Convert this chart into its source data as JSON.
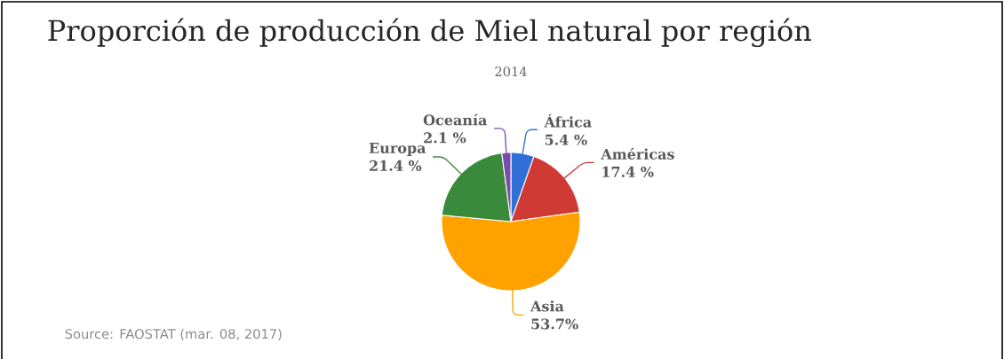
{
  "chart_data": {
    "type": "pie",
    "title": "Proporción de producción de Miel natural por región",
    "subtitle": "2014",
    "categories": [
      "África",
      "Américas",
      "Asia",
      "Europa",
      "Oceanía"
    ],
    "values": [
      5.4,
      17.4,
      53.7,
      21.4,
      2.1
    ],
    "value_labels": [
      "5.4 %",
      "17.4 %",
      "53.7%",
      "21.4 %",
      "2.1 %"
    ],
    "colors": [
      "#2f6fd6",
      "#d03a35",
      "#ffa200",
      "#3a8a3c",
      "#7b4cae"
    ],
    "annotations": [
      "Source: FAOSTAT (mar. 08, 2017)"
    ]
  }
}
